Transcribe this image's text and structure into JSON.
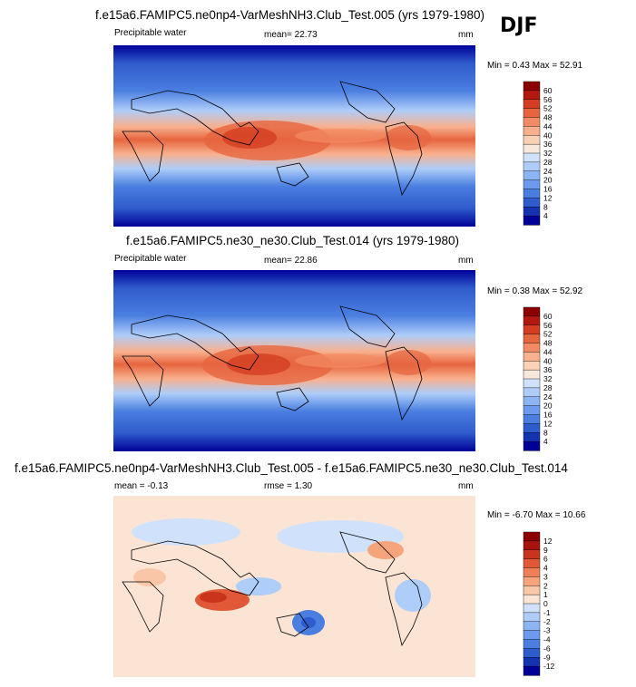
{
  "season": "DJF",
  "panels": [
    {
      "title": "f.e15a6.FAMIPC5.ne0np4-VarMeshNH3.Club_Test.005 (yrs 1979-1980)",
      "variable": "Precipitable water",
      "stat1": "mean=  22.73",
      "stat2": "",
      "units": "mm",
      "minmax": "Min =   0.43 Max =  52.91",
      "colorbar": [
        "60",
        "56",
        "52",
        "48",
        "44",
        "40",
        "36",
        "32",
        "28",
        "24",
        "20",
        "16",
        "12",
        "8",
        "4"
      ]
    },
    {
      "title": "f.e15a6.FAMIPC5.ne30_ne30.Club_Test.014 (yrs 1979-1980)",
      "variable": "Precipitable water",
      "stat1": "mean=  22.86",
      "stat2": "",
      "units": "mm",
      "minmax": "Min =  0.38 Max =  52.92",
      "colorbar": [
        "60",
        "56",
        "52",
        "48",
        "44",
        "40",
        "36",
        "32",
        "28",
        "24",
        "20",
        "16",
        "12",
        "8",
        "4"
      ]
    },
    {
      "title": "f.e15a6.FAMIPC5.ne0np4-VarMeshNH3.Club_Test.005 - f.e15a6.FAMIPC5.ne30_ne30.Club_Test.014",
      "variable": "",
      "stat1": "mean =  -0.13",
      "stat2": "rmse =   1.30",
      "units": "mm",
      "minmax": "Min =  -6.70 Max =  10.66",
      "colorbar": [
        "12",
        "9",
        "6",
        "4",
        "3",
        "2",
        "1",
        "0",
        "-1",
        "-2",
        "-3",
        "-4",
        "-6",
        "-9",
        "-12"
      ]
    }
  ],
  "colors": {
    "abs_scale": [
      "#000099",
      "#1433b3",
      "#2e5ccc",
      "#4a7ee0",
      "#6b9aee",
      "#8cb5f5",
      "#aecdf9",
      "#d0e2fb",
      "#f7e8dc",
      "#fbd1b6",
      "#f9b08d",
      "#f28b63",
      "#e6653f",
      "#d43d22",
      "#b3180e",
      "#8c0000"
    ],
    "diff_scale": [
      "#000099",
      "#1433b3",
      "#2e5ccc",
      "#4a7ee0",
      "#6b9aee",
      "#8cb5f5",
      "#aecdf9",
      "#d0e2fb",
      "#fbe4d4",
      "#f9c7a8",
      "#f5a47c",
      "#ee7f57",
      "#e05836",
      "#c8341c",
      "#a8130b",
      "#8c0000"
    ]
  },
  "chart_data": [
    {
      "type": "heatmap",
      "title": "f.e15a6.FAMIPC5.ne0np4-VarMeshNH3.Club_Test.005 (yrs 1979-1980)",
      "variable": "Precipitable water",
      "units": "mm",
      "mean": 22.73,
      "min": 0.43,
      "max": 52.91,
      "levels": [
        4,
        8,
        12,
        16,
        20,
        24,
        28,
        32,
        36,
        40,
        44,
        48,
        52,
        56,
        60
      ]
    },
    {
      "type": "heatmap",
      "title": "f.e15a6.FAMIPC5.ne30_ne30.Club_Test.014 (yrs 1979-1980)",
      "variable": "Precipitable water",
      "units": "mm",
      "mean": 22.86,
      "min": 0.38,
      "max": 52.92,
      "levels": [
        4,
        8,
        12,
        16,
        20,
        24,
        28,
        32,
        36,
        40,
        44,
        48,
        52,
        56,
        60
      ]
    },
    {
      "type": "heatmap",
      "title": "f.e15a6.FAMIPC5.ne0np4-VarMeshNH3.Club_Test.005 - f.e15a6.FAMIPC5.ne30_ne30.Club_Test.014",
      "units": "mm",
      "mean": -0.13,
      "rmse": 1.3,
      "min": -6.7,
      "max": 10.66,
      "levels": [
        -12,
        -9,
        -6,
        -4,
        -3,
        -2,
        -1,
        0,
        1,
        2,
        3,
        4,
        6,
        9,
        12
      ]
    }
  ]
}
